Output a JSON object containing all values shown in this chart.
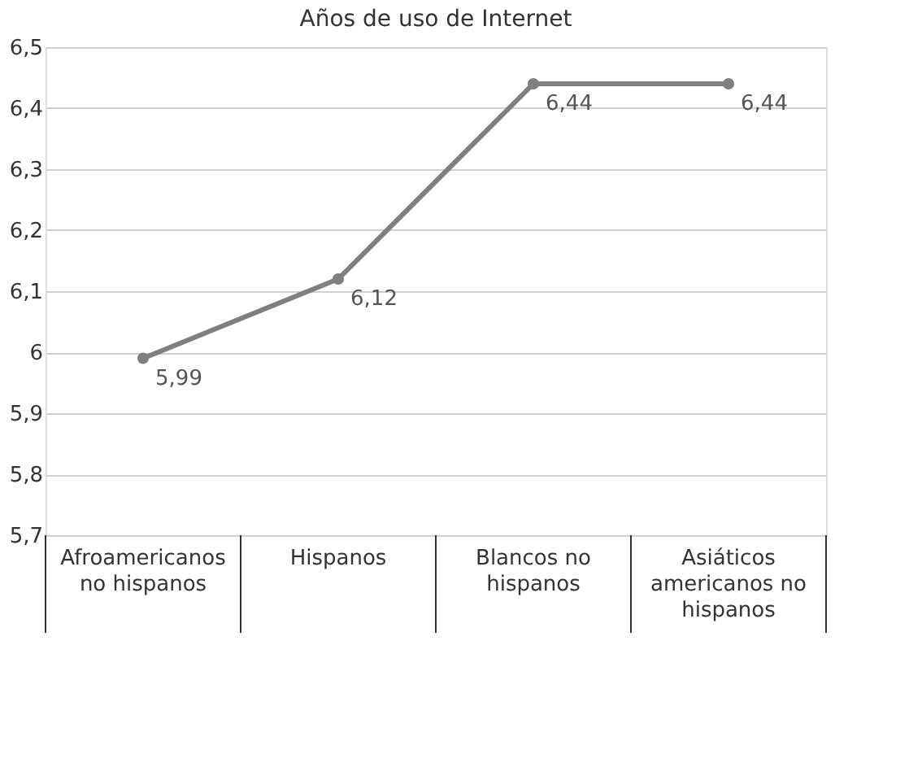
{
  "chart_data": {
    "type": "line",
    "title": "Años de uso de Internet",
    "categories": [
      "Afroamericanos no hispanos",
      "Hispanos",
      "Blancos no hispanos",
      "Asiáticos americanos no hispanos"
    ],
    "series": [
      {
        "color": "#7f7f7f",
        "values": [
          5.99,
          6.12,
          6.44,
          6.44
        ],
        "value_labels": [
          "5,99",
          "6,12",
          "6,44",
          "6,44"
        ]
      }
    ],
    "ylim": [
      5.7,
      6.5
    ],
    "yticks": [
      {
        "value": 5.7,
        "label": "5,7"
      },
      {
        "value": 5.8,
        "label": "5,8"
      },
      {
        "value": 5.9,
        "label": "5,9"
      },
      6,
      {
        "value": 6.1,
        "label": "6,1"
      },
      {
        "value": 6.2,
        "label": "6,2"
      },
      {
        "value": 6.3,
        "label": "6,3"
      },
      {
        "value": 6.4,
        "label": "6,4"
      },
      {
        "value": 6.5,
        "label": "6,5"
      }
    ],
    "grid": "y",
    "marker": "circle",
    "line_style": "solid"
  }
}
